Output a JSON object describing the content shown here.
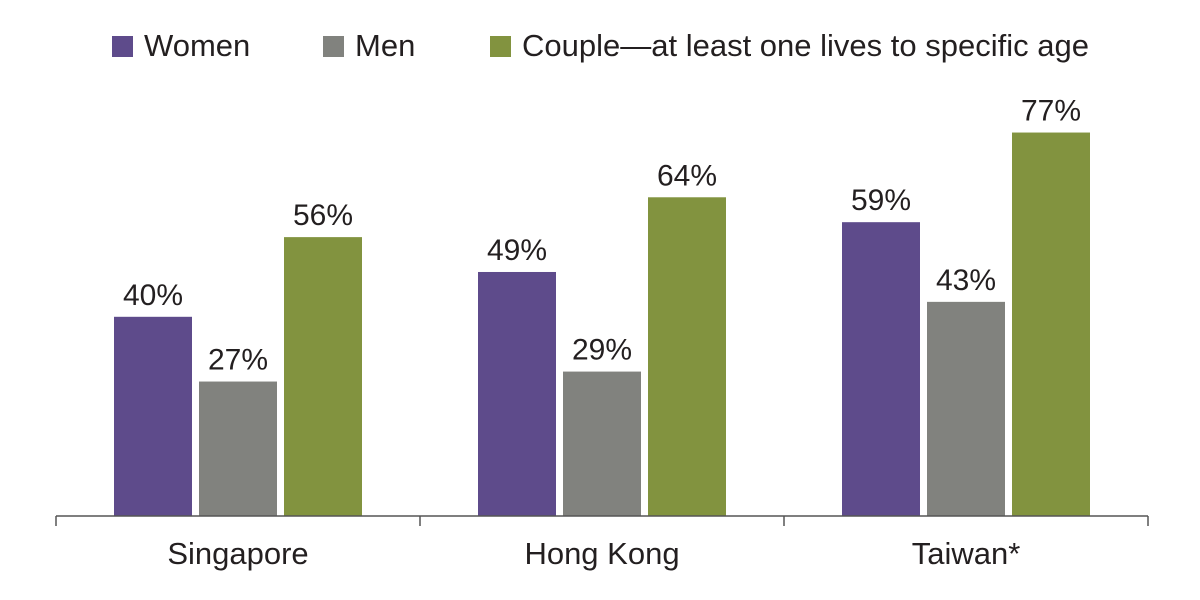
{
  "chart_data": {
    "type": "bar",
    "title": "",
    "xlabel": "",
    "ylabel": "",
    "ylim": [
      0,
      85
    ],
    "grid": false,
    "legend_position": "top",
    "categories": [
      "Singapore",
      "Hong Kong",
      "Taiwan*"
    ],
    "series": [
      {
        "name": "Women",
        "color": "#5e4b8b",
        "values": [
          40,
          49,
          59
        ],
        "labels": [
          "40%",
          "49%",
          "59%"
        ]
      },
      {
        "name": "Men",
        "color": "#81827e",
        "values": [
          27,
          29,
          43
        ],
        "labels": [
          "27%",
          "29%",
          "43%"
        ]
      },
      {
        "name": "Couple—at least one lives to specific age",
        "color": "#82933f",
        "values": [
          56,
          64,
          77
        ],
        "labels": [
          "56%",
          "64%",
          "77%"
        ]
      }
    ]
  }
}
